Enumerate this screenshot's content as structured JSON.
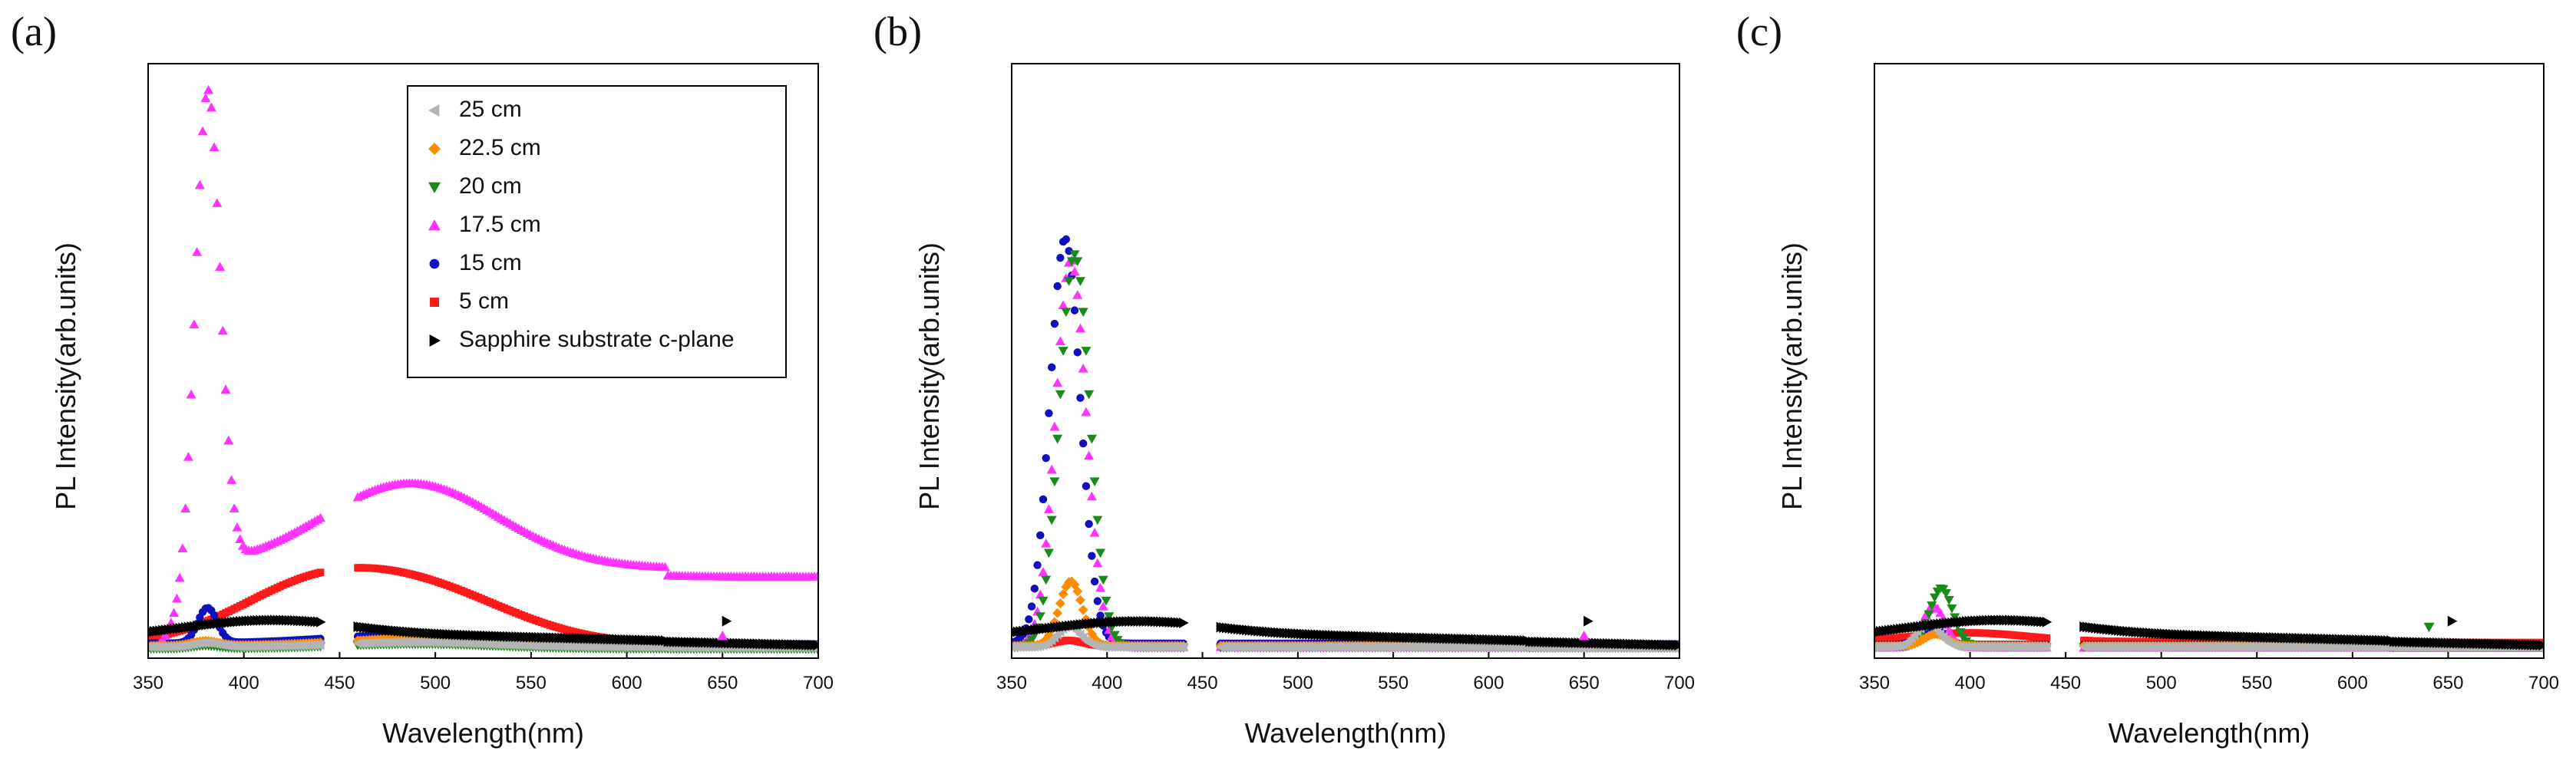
{
  "figure": {
    "panel_labels": [
      "(a)",
      "(b)",
      "(c)"
    ]
  },
  "legend": {
    "entries": [
      {
        "label": "25    cm",
        "color": "#b4b4b4",
        "marker": "triangle-left"
      },
      {
        "label": "22.5 cm",
        "color": "#ff8c00",
        "marker": "diamond"
      },
      {
        "label": "20    cm",
        "color": "#1a8a1a",
        "marker": "triangle-down"
      },
      {
        "label": "17.5 cm",
        "color": "#ff33ff",
        "marker": "triangle-up"
      },
      {
        "label": "15    cm",
        "color": "#1010c0",
        "marker": "circle"
      },
      {
        "label": "5      cm",
        "color": "#ff1a1a",
        "marker": "square"
      },
      {
        "label": "Sapphire substrate c-plane",
        "color": "#000000",
        "marker": "triangle-right"
      }
    ]
  },
  "chart_data": [
    {
      "type": "scatter",
      "panel": "(a)",
      "xlabel": "Wavelength(nm)",
      "ylabel": "PL Intensity(arb.units)",
      "xlim": [
        350,
        700
      ],
      "ylim": [
        0,
        100
      ],
      "xticks": [
        350,
        400,
        450,
        500,
        550,
        600,
        650,
        700
      ],
      "gap": [
        441,
        459
      ],
      "series": [
        {
          "name": "25 cm",
          "color": "#b4b4b4",
          "marker": "triangle-left",
          "peaks": [
            {
              "center": 380,
              "amp": 0.7,
              "width": 7
            },
            {
              "center": 490,
              "amp": 0.8,
              "width": 40
            }
          ],
          "base": 0.6
        },
        {
          "name": "22.5 cm",
          "color": "#ff8c00",
          "marker": "diamond",
          "peaks": [
            {
              "center": 380,
              "amp": 0.8,
              "width": 7
            },
            {
              "center": 490,
              "amp": 1.2,
              "width": 40
            }
          ],
          "base": 0.8
        },
        {
          "name": "20 cm",
          "color": "#1a8a1a",
          "marker": "triangle-down",
          "peaks": [
            {
              "center": 380,
              "amp": 0.5,
              "width": 7
            },
            {
              "center": 490,
              "amp": 0.8,
              "width": 40
            }
          ],
          "base": 0.3
        },
        {
          "name": "17.5 cm",
          "color": "#ff33ff",
          "marker": "triangle-up",
          "peaks": [
            {
              "center": 381,
              "amp": 84,
              "width": 6.5
            },
            {
              "center": 487,
              "amp": 14.5,
              "width": 46
            }
          ],
          "base": 14,
          "base_end": 390,
          "tail": 0.5
        },
        {
          "name": "15 cm",
          "color": "#1010c0",
          "marker": "circle",
          "peaks": [
            {
              "center": 381,
              "amp": 6,
              "width": 5
            },
            {
              "center": 490,
              "amp": 1.5,
              "width": 45
            }
          ],
          "base": 1.2
        },
        {
          "name": "5 cm",
          "color": "#ff1a1a",
          "marker": "square",
          "peaks": [
            {
              "center": 430,
              "amp": 7,
              "width": 40
            },
            {
              "center": 490,
              "amp": 9.5,
              "width": 48
            }
          ],
          "base": 1.0
        },
        {
          "name": "Sapphire substrate c-plane",
          "color": "#000000",
          "marker": "triangle-right",
          "peaks": [
            {
              "center": 410,
              "amp": 2.2,
              "width": 40
            }
          ],
          "base": 1.0,
          "slope": true
        }
      ],
      "annotations": [
        {
          "x": 652,
          "y": 5,
          "marker": "triangle-right",
          "color": "#000000"
        },
        {
          "x": 650,
          "y": 2.5,
          "marker": "triangle-up",
          "color": "#ff33ff"
        }
      ]
    },
    {
      "type": "scatter",
      "panel": "(b)",
      "xlabel": "Wavelength(nm)",
      "ylabel": "PL Intensity(arb.units)",
      "xlim": [
        350,
        700
      ],
      "ylim": [
        0,
        100
      ],
      "xticks": [
        350,
        400,
        450,
        500,
        550,
        600,
        650,
        700
      ],
      "gap": [
        441,
        459
      ],
      "series": [
        {
          "name": "25 cm",
          "color": "#b4b4b4",
          "marker": "triangle-left",
          "peaks": [
            {
              "center": 380,
              "amp": 3.5,
              "width": 6
            }
          ],
          "base": 0.6
        },
        {
          "name": "22.5 cm",
          "color": "#ff8c00",
          "marker": "diamond",
          "peaks": [
            {
              "center": 381,
              "amp": 11,
              "width": 6
            }
          ],
          "base": 0.8
        },
        {
          "name": "20 cm",
          "color": "#1a8a1a",
          "marker": "triangle-down",
          "peaks": [
            {
              "center": 383,
              "amp": 67,
              "width": 8
            }
          ],
          "base": 0.5
        },
        {
          "name": "17.5 cm",
          "color": "#ff33ff",
          "marker": "triangle-up",
          "peaks": [
            {
              "center": 381,
              "amp": 66,
              "width": 8
            }
          ],
          "base": 0.6
        },
        {
          "name": "15 cm",
          "color": "#1010c0",
          "marker": "circle",
          "peaks": [
            {
              "center": 378,
              "amp": 69,
              "width": 8
            }
          ],
          "base": 1.2
        },
        {
          "name": "5 cm",
          "color": "#ff1a1a",
          "marker": "square",
          "peaks": [
            {
              "center": 380,
              "amp": 1.0,
              "width": 8
            }
          ],
          "base": 0.7
        },
        {
          "name": "Sapphire substrate c-plane",
          "color": "#000000",
          "marker": "triangle-right",
          "peaks": [
            {
              "center": 410,
              "amp": 2.0,
              "width": 40
            }
          ],
          "base": 1.0,
          "slope": true
        }
      ],
      "annotations": [
        {
          "x": 652,
          "y": 5,
          "marker": "triangle-right",
          "color": "#000000"
        },
        {
          "x": 650,
          "y": 2.5,
          "marker": "triangle-up",
          "color": "#ff33ff"
        }
      ]
    },
    {
      "type": "scatter",
      "panel": "(c)",
      "xlabel": "Wavelength(nm)",
      "ylabel": "PL Intensity(arb.units)",
      "xlim": [
        350,
        700
      ],
      "ylim": [
        0,
        100
      ],
      "xticks": [
        350,
        400,
        450,
        500,
        550,
        600,
        650,
        700
      ],
      "gap": [
        441,
        459
      ],
      "series": [
        {
          "name": "25 cm",
          "color": "#b4b4b4",
          "marker": "triangle-left",
          "peaks": [
            {
              "center": 378,
              "amp": 4,
              "width": 6
            }
          ],
          "base": 0.6
        },
        {
          "name": "22.5 cm",
          "color": "#ff8c00",
          "marker": "diamond",
          "peaks": [
            {
              "center": 382,
              "amp": 2,
              "width": 6
            }
          ],
          "base": 0.8
        },
        {
          "name": "20 cm",
          "color": "#1a8a1a",
          "marker": "triangle-down",
          "peaks": [
            {
              "center": 385,
              "amp": 10,
              "width": 6
            }
          ],
          "base": 0.6
        },
        {
          "name": "17.5 cm",
          "color": "#ff33ff",
          "marker": "triangle-up",
          "peaks": [
            {
              "center": 381,
              "amp": 7,
              "width": 6
            }
          ],
          "base": 0.5
        },
        {
          "name": "15 cm",
          "color": "#1010c0",
          "marker": "circle",
          "peaks": [
            {
              "center": 380,
              "amp": 3,
              "width": 6
            }
          ],
          "base": 1.0
        },
        {
          "name": "5 cm",
          "color": "#ff1a1a",
          "marker": "square",
          "peaks": [
            {
              "center": 400,
              "amp": 1.5,
              "width": 30
            }
          ],
          "base": 1.5
        },
        {
          "name": "Sapphire substrate c-plane",
          "color": "#000000",
          "marker": "triangle-right",
          "peaks": [
            {
              "center": 410,
              "amp": 2.2,
              "width": 40
            }
          ],
          "base": 1.0,
          "slope": true
        }
      ],
      "annotations": [
        {
          "x": 652,
          "y": 5,
          "marker": "triangle-right",
          "color": "#000000"
        },
        {
          "x": 640,
          "y": 4,
          "marker": "triangle-down",
          "color": "#1a8a1a"
        }
      ]
    }
  ]
}
